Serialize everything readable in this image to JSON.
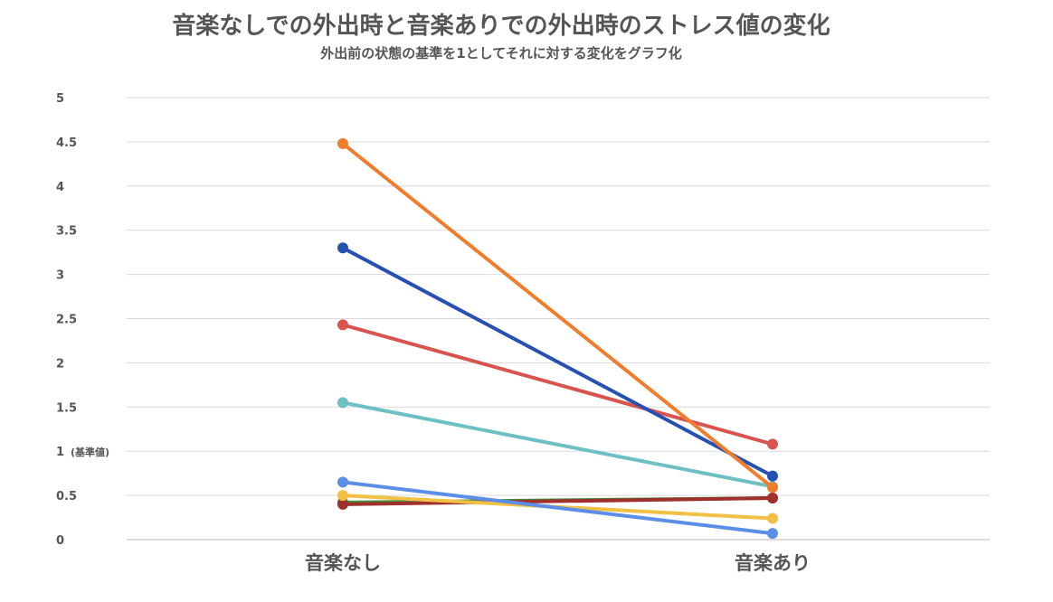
{
  "chart_data": {
    "type": "line",
    "title": "音楽なしでの外出時と音楽ありでの外出時のストレス値の変化",
    "subtitle": "外出前の状態の基準を1としてそれに対する変化をグラフ化",
    "categories": [
      "音楽なし",
      "音楽あり"
    ],
    "yticks": [
      "0",
      "0.5",
      "1",
      "1.5",
      "2",
      "2.5",
      "3",
      "3.5",
      "4",
      "4.5",
      "5"
    ],
    "ytick_note": {
      "value": 1,
      "text": "(基準値)"
    },
    "ylim": [
      0,
      5
    ],
    "grid": true,
    "legend": "none",
    "series": [
      {
        "color": "#ef7d2e",
        "values": [
          4.48,
          0.59
        ]
      },
      {
        "color": "#2750b3",
        "values": [
          3.3,
          0.72
        ]
      },
      {
        "color": "#d9534f",
        "values": [
          2.43,
          1.08
        ]
      },
      {
        "color": "#6cbfc3",
        "values": [
          1.55,
          0.6
        ]
      },
      {
        "color": "#5b8ee6",
        "values": [
          0.65,
          0.07
        ]
      },
      {
        "color": "#f2c044",
        "values": [
          0.5,
          0.24
        ]
      },
      {
        "color": "#a0302c",
        "values": [
          0.4,
          0.47
        ]
      },
      {
        "color": "#3f8f3f",
        "values": [
          0.42,
          0.47
        ]
      }
    ]
  }
}
